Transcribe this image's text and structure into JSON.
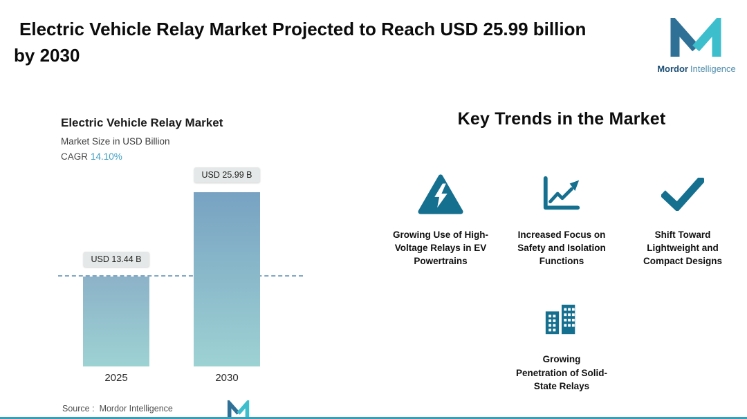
{
  "header": {
    "title_line1": "Electric Vehicle Relay Market Projected to Reach USD 25.99 billion",
    "title_line2": "by 2030",
    "brand": {
      "bold": "Mordor",
      "light": "Intelligence"
    }
  },
  "chart": {
    "title": "Electric Vehicle Relay Market",
    "subtitle": "Market Size in USD Billion",
    "cagr_label": "CAGR",
    "cagr_value": "14.10%",
    "source_label": "Source :",
    "source_brand": "Mordor Intelligence"
  },
  "chart_data": {
    "type": "bar",
    "title": "Electric Vehicle Relay Market",
    "subtitle": "Market Size in USD Billion",
    "cagr": "14.10%",
    "categories": [
      "2025",
      "2030"
    ],
    "values": [
      13.44,
      25.99
    ],
    "value_labels": [
      "USD 13.44 B",
      "USD 25.99 B"
    ],
    "ylabel": "Market Size in USD Billion",
    "ylim": [
      0,
      26
    ],
    "guide_line_at": 13.44,
    "grid": false,
    "legend": false,
    "bar_gradient_top": "#78a2c2",
    "bar_gradient_bottom": "#9dd2d3"
  },
  "trends": {
    "heading": "Key Trends in the Market",
    "items": [
      {
        "icon": "high-voltage-warning-icon",
        "label": "Growing Use of High-Voltage Relays in EV Powertrains"
      },
      {
        "icon": "growth-chart-icon",
        "label": "Increased Focus on Safety and Isolation Functions"
      },
      {
        "icon": "checkmark-icon",
        "label": "Shift Toward Lightweight and Compact Designs"
      },
      {
        "icon": "buildings-icon",
        "label": "Growing Penetration of Solid-State Relays"
      }
    ]
  },
  "colors": {
    "accent_teal": "#3cbecd",
    "accent_navy": "#2f7196",
    "icon_teal": "#156f8f",
    "cagr_value": "#3f9fc2",
    "pill_bg": "#e5e8e8",
    "guide_dash": "#7fa6c4"
  }
}
